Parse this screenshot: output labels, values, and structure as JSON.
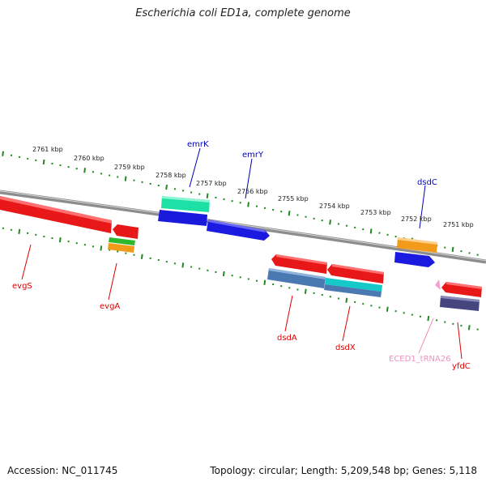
{
  "title": "Escherichia coli ED1a, complete genome",
  "footer": {
    "accession": "Accession: NC_011745",
    "topology": "Topology: circular; Length: 5,209,548 bp; Genes: 5,118"
  },
  "colors": {
    "backbone": "#808080",
    "tick": "#1f8a1f",
    "forward_label": "#0000bb",
    "reverse_label": "#dd0000",
    "trna_label": "#f090c0"
  },
  "coordinate_labels": [
    "2761 kbp",
    "2760 kbp",
    "2759 kbp",
    "2758 kbp",
    "2757 kbp",
    "2756 kbp",
    "2755 kbp",
    "2754 kbp",
    "2753 kbp",
    "2752 kbp",
    "2751 kbp"
  ],
  "gene_labels": [
    {
      "id": "evgS",
      "text": "evgS",
      "strand": "reverse"
    },
    {
      "id": "evgA",
      "text": "evgA",
      "strand": "reverse"
    },
    {
      "id": "emrK",
      "text": "emrK",
      "strand": "forward"
    },
    {
      "id": "emrY",
      "text": "emrY",
      "strand": "forward"
    },
    {
      "id": "dsdA",
      "text": "dsdA",
      "strand": "reverse"
    },
    {
      "id": "dsdX",
      "text": "dsdX",
      "strand": "reverse"
    },
    {
      "id": "dsdC",
      "text": "dsdC",
      "strand": "forward"
    },
    {
      "id": "eced1_trna26",
      "text": "ECED1_tRNA26",
      "strand": "reverse"
    },
    {
      "id": "yfdC",
      "text": "yfdC",
      "strand": "reverse"
    }
  ]
}
